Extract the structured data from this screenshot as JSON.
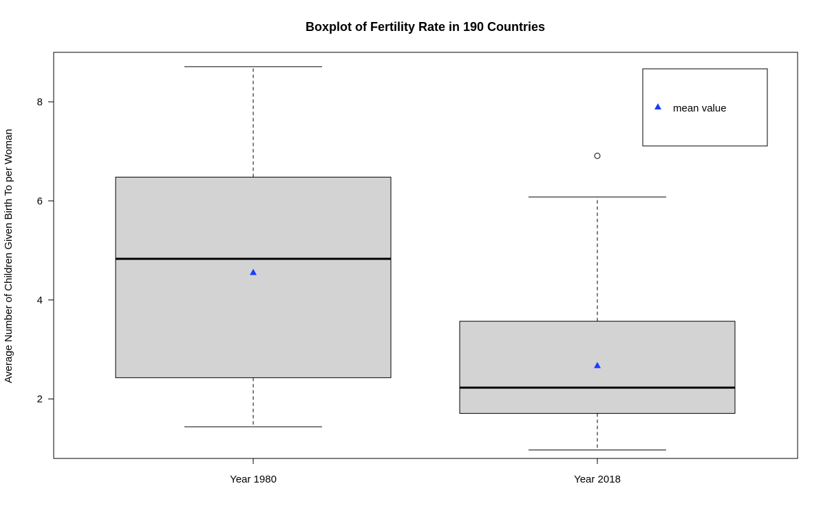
{
  "chart_data": {
    "type": "boxplot",
    "title": "Boxplot of Fertility Rate in 190 Countries",
    "xlabel": "",
    "ylabel": "Average Number of Children Given Birth To per Woman",
    "ylim": [
      0.8,
      9.0
    ],
    "yticks": [
      2,
      4,
      6,
      8
    ],
    "categories": [
      "Year 1980",
      "Year 2018"
    ],
    "boxes": [
      {
        "min": 1.44,
        "q1": 2.43,
        "median": 4.83,
        "q3": 6.48,
        "max": 8.71,
        "mean": 4.56,
        "outliers": []
      },
      {
        "min": 0.97,
        "q1": 1.71,
        "median": 2.23,
        "q3": 3.57,
        "max": 6.08,
        "mean": 2.68,
        "outliers": [
          6.91
        ]
      }
    ],
    "legend": {
      "position": "top-right",
      "entries": [
        {
          "label": "mean value",
          "marker": "triangle"
        }
      ]
    },
    "colors": {
      "box_fill": "#d3d3d3",
      "mean_marker": "#1a3cff",
      "outline": "#000000"
    }
  }
}
